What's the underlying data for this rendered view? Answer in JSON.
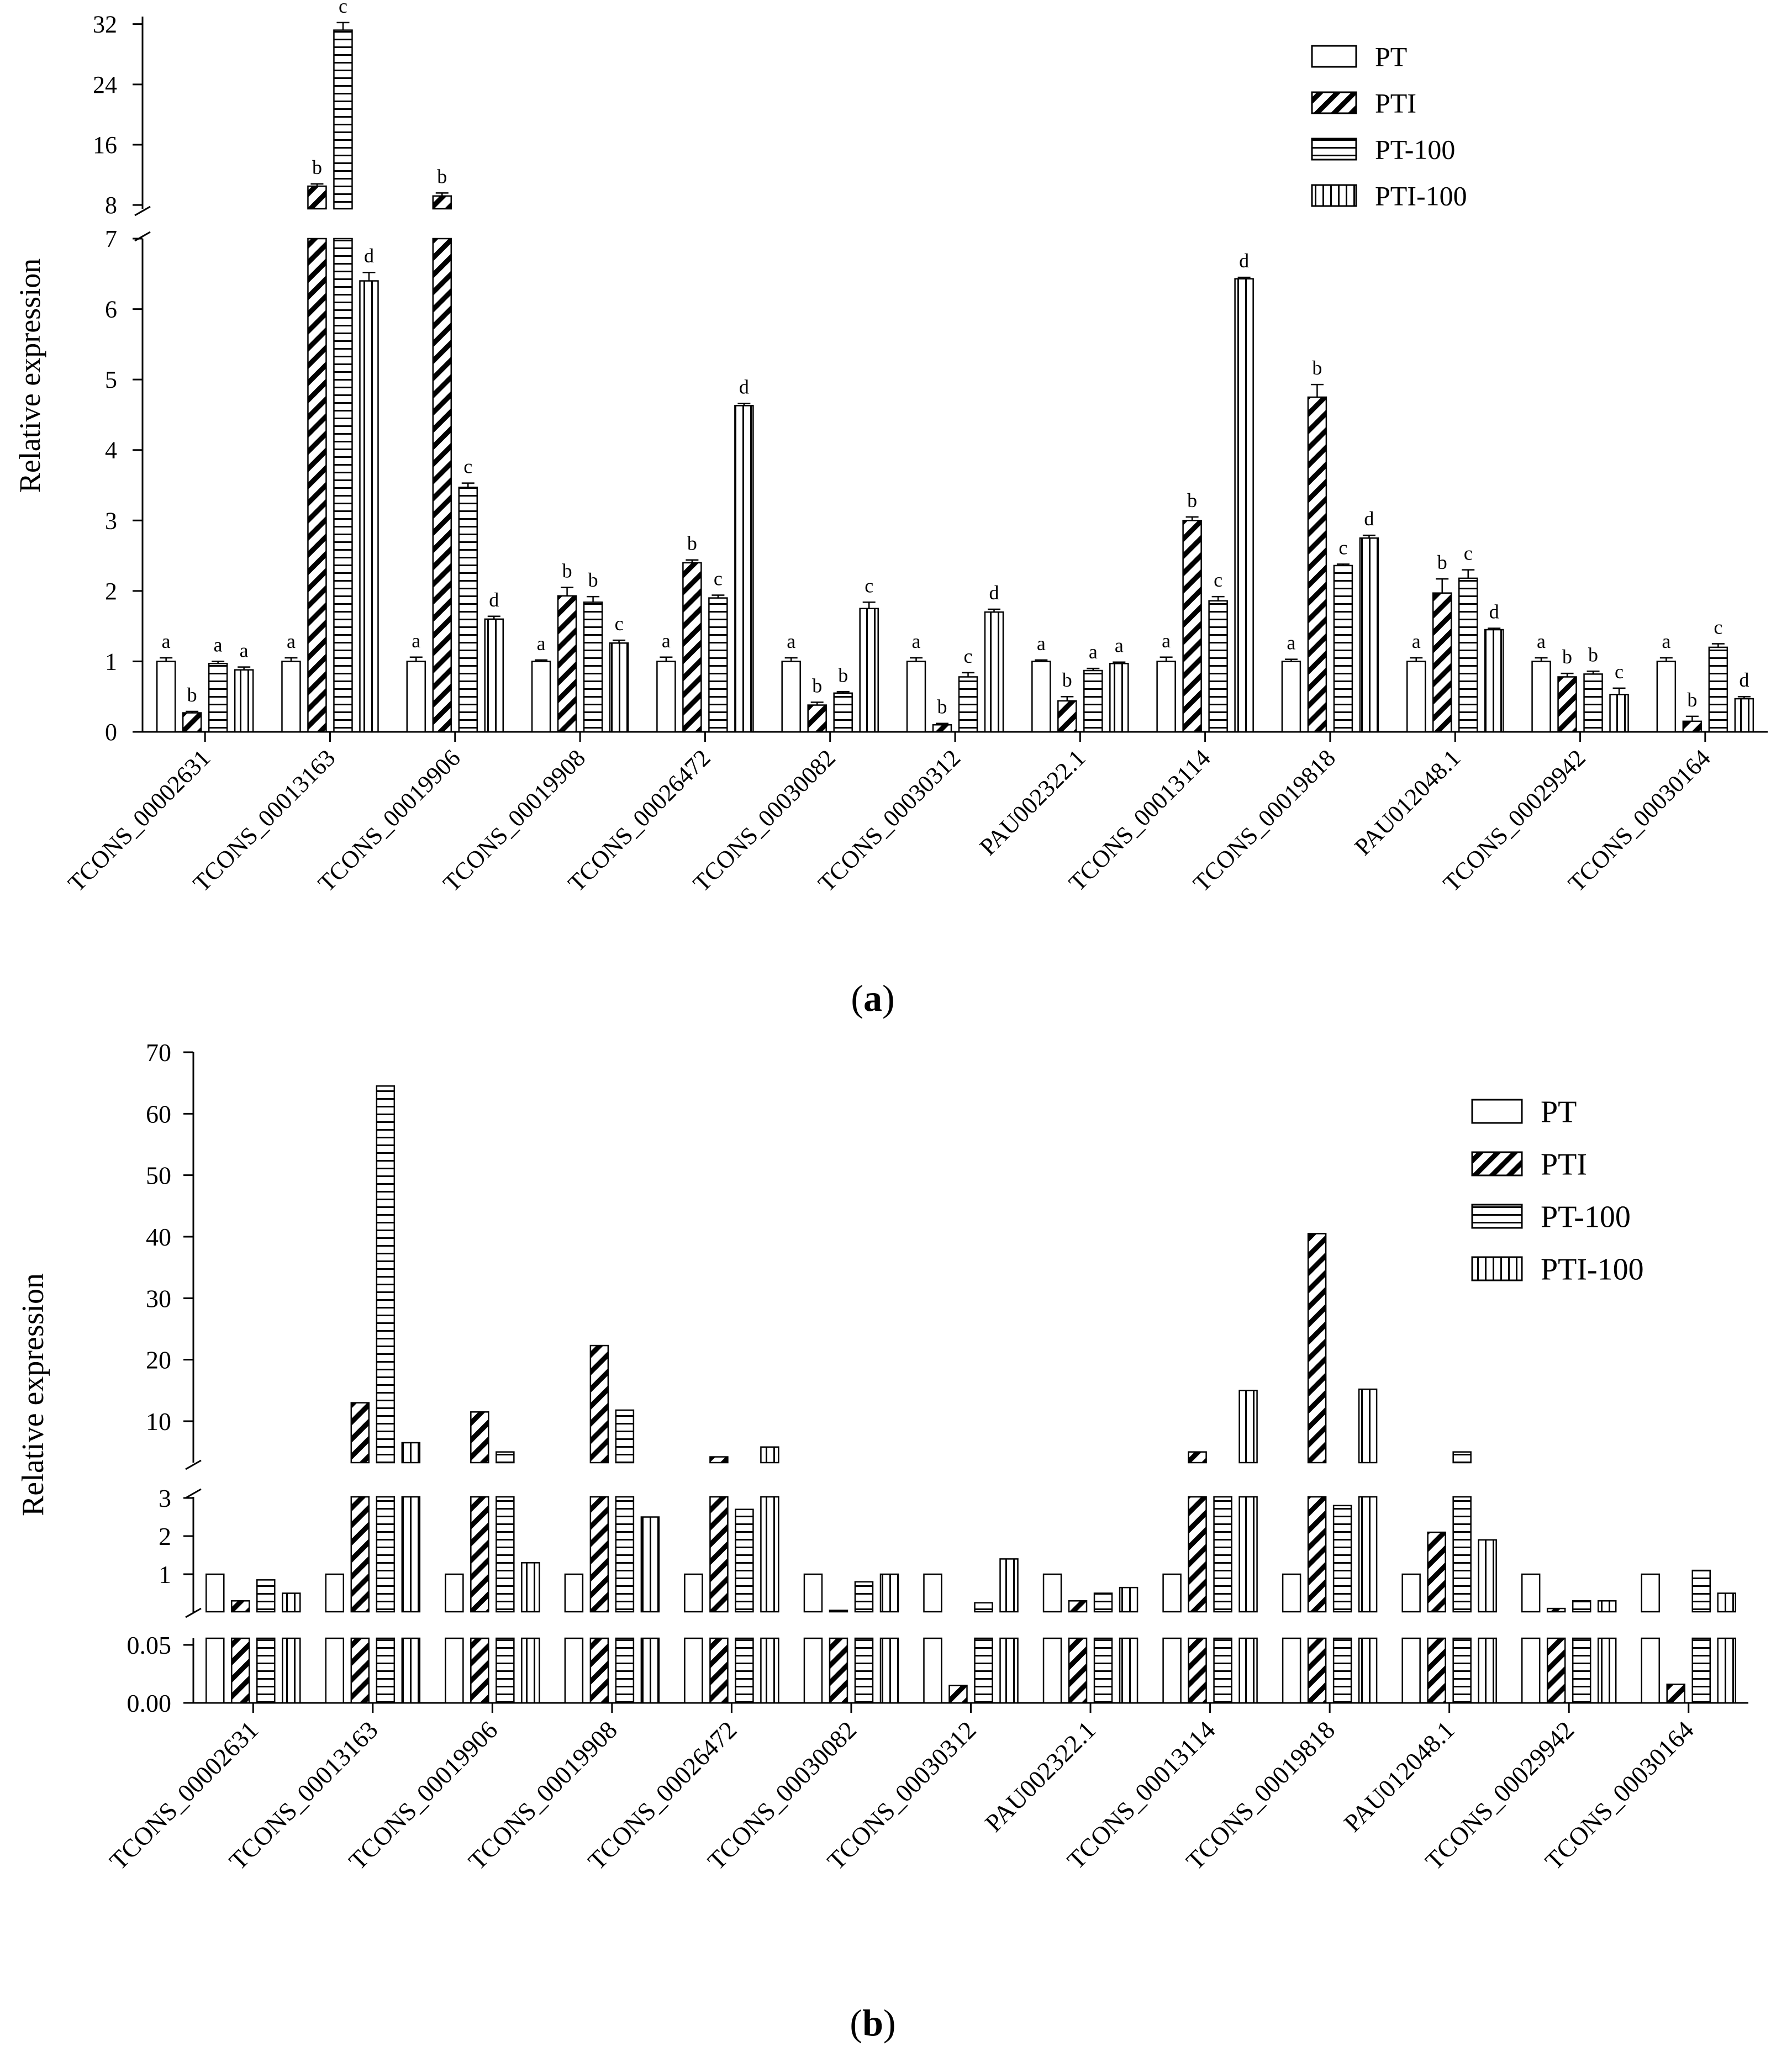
{
  "figure": {
    "panel_a_label": "a",
    "panel_b_label": "b"
  },
  "legend": [
    {
      "name": "PT",
      "pattern": "none"
    },
    {
      "name": "PTI",
      "pattern": "diagonal"
    },
    {
      "name": "PT-100",
      "pattern": "horizontal"
    },
    {
      "name": "PTI-100",
      "pattern": "vertical"
    }
  ],
  "chart_data": [
    {
      "panel": "a",
      "type": "bar",
      "ylabel": "Relative expression",
      "y_axis": "broken",
      "lower_ylim": [
        0,
        7
      ],
      "lower_ticks": [
        0,
        1,
        2,
        3,
        4,
        5,
        6,
        7
      ],
      "upper_ylim": [
        7.5,
        33
      ],
      "upper_ticks": [
        8,
        16,
        24,
        32
      ],
      "categories": [
        "TCONS_00002631",
        "TCONS_00013163",
        "TCONS_00019906",
        "TCONS_00019908",
        "TCONS_00026472",
        "TCONS_00030082",
        "TCONS_00030312",
        "PAU002322.1",
        "TCONS_00013114",
        "TCONS_00019818",
        "PAU012048.1",
        "TCONS_00029942",
        "TCONS_00030164"
      ],
      "series": [
        {
          "name": "PT",
          "values": [
            1,
            1,
            1,
            1,
            1,
            1,
            1,
            1,
            1,
            1,
            1,
            1,
            1
          ],
          "errors": [
            0.05,
            0.05,
            0.06,
            0.02,
            0.06,
            0.05,
            0.05,
            0.02,
            0.06,
            0.03,
            0.05,
            0.05,
            0.05
          ],
          "letters": [
            "a",
            "a",
            "a",
            "a",
            "a",
            "a",
            "a",
            "a",
            "a",
            "a",
            "a",
            "a",
            "a"
          ]
        },
        {
          "name": "PTI",
          "values": [
            0.27,
            10.5,
            9.2,
            1.93,
            2.4,
            0.38,
            0.1,
            0.44,
            3.0,
            4.75,
            1.97,
            0.78,
            0.15
          ],
          "errors": [
            0.02,
            0.3,
            0.4,
            0.12,
            0.04,
            0.04,
            0.02,
            0.06,
            0.05,
            0.18,
            0.2,
            0.05,
            0.07
          ],
          "letters": [
            "b",
            "b",
            "b",
            "b",
            "b",
            "b",
            "b",
            "b",
            "b",
            "b",
            "b",
            "b",
            "b"
          ]
        },
        {
          "name": "PT-100",
          "values": [
            0.97,
            31.2,
            3.47,
            1.84,
            1.9,
            0.55,
            0.78,
            0.87,
            1.86,
            2.36,
            2.18,
            0.82,
            1.2
          ],
          "errors": [
            0.03,
            1.0,
            0.06,
            0.08,
            0.04,
            0.02,
            0.06,
            0.03,
            0.06,
            0.02,
            0.12,
            0.04,
            0.05
          ],
          "letters": [
            "a",
            "c",
            "c",
            "b",
            "c",
            "b",
            "c",
            "a",
            "c",
            "c",
            "c",
            "b",
            "c"
          ]
        },
        {
          "name": "PTI-100",
          "values": [
            0.88,
            6.4,
            1.6,
            1.26,
            4.63,
            1.75,
            1.7,
            0.97,
            6.43,
            2.75,
            1.45,
            0.53,
            0.47
          ],
          "errors": [
            0.04,
            0.12,
            0.04,
            0.04,
            0.03,
            0.09,
            0.04,
            0.02,
            0.02,
            0.04,
            0.02,
            0.09,
            0.03
          ],
          "letters": [
            "a",
            "d",
            "d",
            "c",
            "d",
            "c",
            "d",
            "a",
            "d",
            "d",
            "d",
            "c",
            "d"
          ]
        }
      ]
    },
    {
      "panel": "b",
      "type": "bar",
      "ylabel": "Relative expression",
      "y_axis": "broken",
      "bottom_ylim": [
        0,
        0.05
      ],
      "bottom_ticks": [
        "0.00",
        "0.05"
      ],
      "middle_ylim": [
        0,
        3
      ],
      "middle_ticks": [
        1,
        2,
        3
      ],
      "upper_ylim": [
        3,
        70
      ],
      "upper_ticks": [
        10,
        20,
        30,
        40,
        50,
        60,
        70
      ],
      "categories": [
        "TCONS_00002631",
        "TCONS_00013163",
        "TCONS_00019906",
        "TCONS_00019908",
        "TCONS_00026472",
        "TCONS_00030082",
        "TCONS_00030312",
        "PAU002322.1",
        "TCONS_00013114",
        "TCONS_00019818",
        "PAU012048.1",
        "TCONS_00029942",
        "TCONS_00030164"
      ],
      "series": [
        {
          "name": "PT",
          "values": [
            1,
            1,
            1,
            1,
            1,
            1,
            1,
            1,
            1,
            1,
            1,
            1,
            1
          ]
        },
        {
          "name": "PTI",
          "values": [
            0.3,
            13,
            11.5,
            22.3,
            4.2,
            0.05,
            0.015,
            0.3,
            5.0,
            40.5,
            2.1,
            0.1,
            0.016
          ]
        },
        {
          "name": "PT-100",
          "values": [
            0.85,
            64.5,
            5.0,
            11.8,
            2.7,
            0.8,
            0.25,
            0.5,
            3.0,
            2.8,
            5.0,
            0.3,
            1.1
          ]
        },
        {
          "name": "PTI-100",
          "values": [
            0.5,
            6.5,
            1.3,
            2.5,
            5.8,
            1.0,
            1.4,
            0.65,
            15,
            15.2,
            1.9,
            0.3,
            0.5
          ]
        }
      ]
    }
  ]
}
